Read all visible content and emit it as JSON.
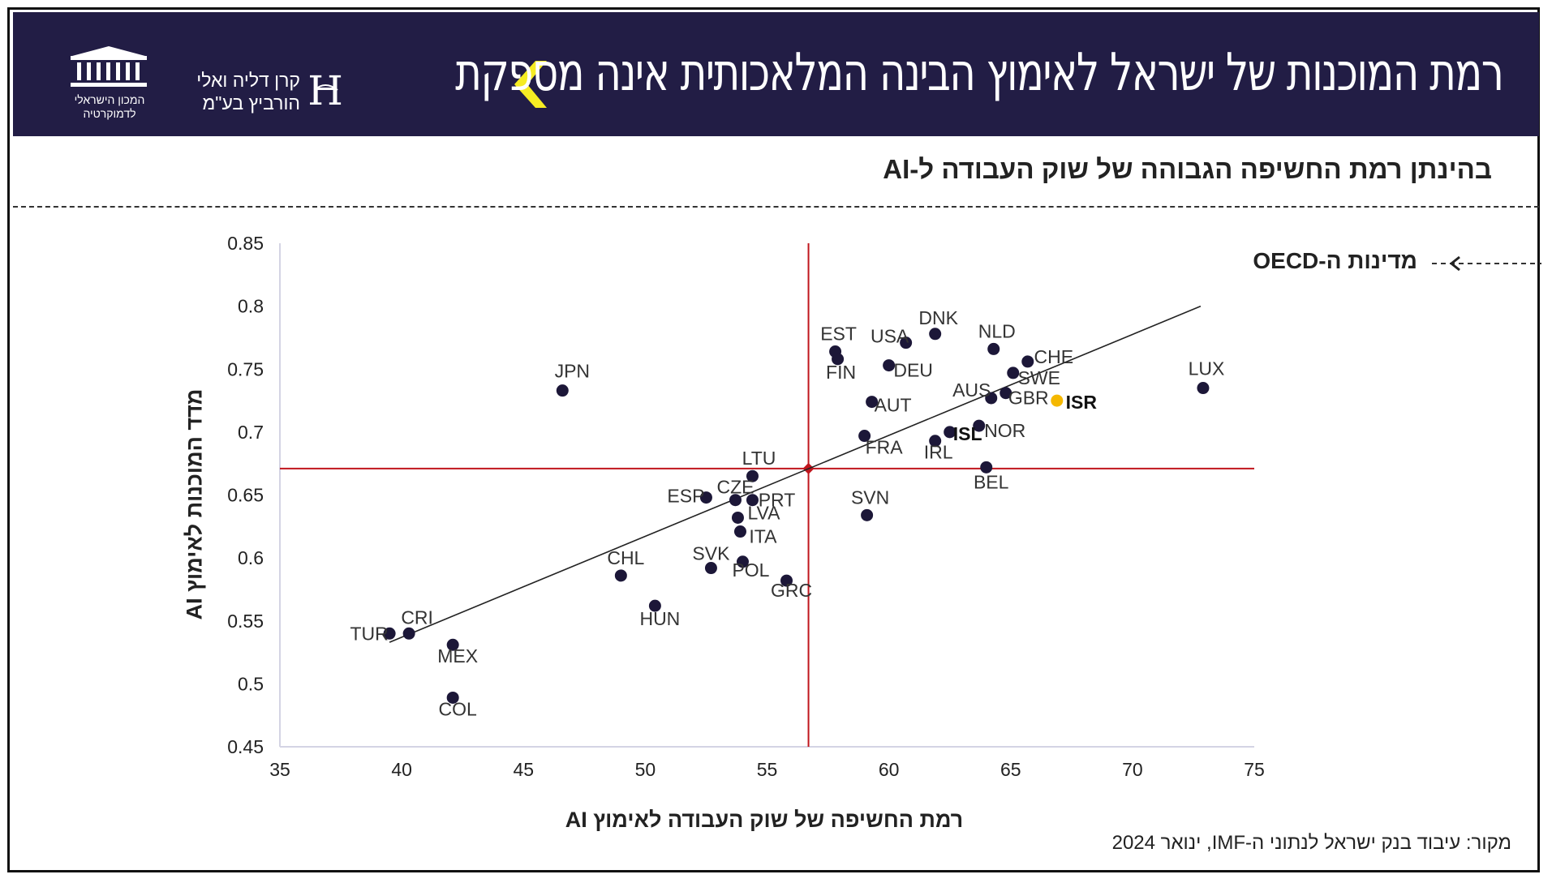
{
  "header": {
    "title": "רמת המוכנות של ישראל לאימוץ הבינה המלאכותית אינה מספקת",
    "foundation_line1": "קרן דליה ואלי",
    "foundation_line2": "הורביץ בע\"מ",
    "idi_line1": "המכון הישראלי",
    "idi_line2": "לדמוקרטיה",
    "background_color": "#221d45",
    "accent_color": "#f6ec23"
  },
  "subtitle": "בהינתן רמת החשיפה הגבוהה של שוק העבודה ל-AI",
  "annotation": "מדינות ה-OECD",
  "source": "מקור: עיבוד בנק ישראל לנתוני ה-IMF, ינואר 2024",
  "chart_data": {
    "type": "scatter",
    "xlabel": "רמת החשיפה של שוק העבודה לאימוץ AI",
    "ylabel": "מדד המוכנות לאימוץ AI",
    "xlim": [
      35,
      75
    ],
    "ylim": [
      0.45,
      0.85
    ],
    "x_ticks": [
      "35",
      "40",
      "45",
      "50",
      "55",
      "60",
      "65",
      "70",
      "75"
    ],
    "y_ticks": [
      "0.45",
      "0.5",
      "0.55",
      "0.6",
      "0.65",
      "0.7",
      "0.75",
      "0.8",
      "0.85"
    ],
    "oecd_average": {
      "x": 56.7,
      "y": 0.671
    },
    "trendline": {
      "from": [
        39.5,
        0.533
      ],
      "to": [
        72.8,
        0.8
      ]
    },
    "point_color": "#1c1738",
    "highlight_color": "#f5b800",
    "reference_line_color": "#c0151d",
    "points": [
      {
        "label": "TUR",
        "x": 39.5,
        "y": 0.54
      },
      {
        "label": "CRI",
        "x": 40.3,
        "y": 0.54
      },
      {
        "label": "MEX",
        "x": 42.1,
        "y": 0.531
      },
      {
        "label": "COL",
        "x": 42.1,
        "y": 0.489
      },
      {
        "label": "JPN",
        "x": 46.6,
        "y": 0.733
      },
      {
        "label": "CHL",
        "x": 49.0,
        "y": 0.586
      },
      {
        "label": "HUN",
        "x": 50.4,
        "y": 0.562
      },
      {
        "label": "SVK",
        "x": 52.7,
        "y": 0.592
      },
      {
        "label": "ESP",
        "x": 52.5,
        "y": 0.648
      },
      {
        "label": "CZE",
        "x": 53.7,
        "y": 0.646
      },
      {
        "label": "LVA",
        "x": 53.8,
        "y": 0.632
      },
      {
        "label": "ITA",
        "x": 53.9,
        "y": 0.621
      },
      {
        "label": "POL",
        "x": 54.0,
        "y": 0.597
      },
      {
        "label": "LTU",
        "x": 54.4,
        "y": 0.665
      },
      {
        "label": "PRT",
        "x": 54.4,
        "y": 0.646
      },
      {
        "label": "GRC",
        "x": 55.8,
        "y": 0.582
      },
      {
        "label": "EST",
        "x": 57.8,
        "y": 0.764
      },
      {
        "label": "FIN",
        "x": 57.9,
        "y": 0.758
      },
      {
        "label": "FRA",
        "x": 59.0,
        "y": 0.697
      },
      {
        "label": "SVN",
        "x": 59.1,
        "y": 0.634
      },
      {
        "label": "AUT",
        "x": 59.3,
        "y": 0.724
      },
      {
        "label": "DEU",
        "x": 60.0,
        "y": 0.753
      },
      {
        "label": "USA",
        "x": 60.7,
        "y": 0.771
      },
      {
        "label": "DNK",
        "x": 61.9,
        "y": 0.778
      },
      {
        "label": "IRL",
        "x": 61.9,
        "y": 0.693
      },
      {
        "label": "ISL",
        "x": 62.5,
        "y": 0.7,
        "bold": true
      },
      {
        "label": "NOR",
        "x": 63.7,
        "y": 0.705
      },
      {
        "label": "BEL",
        "x": 64.0,
        "y": 0.672
      },
      {
        "label": "AUS",
        "x": 64.2,
        "y": 0.727
      },
      {
        "label": "NLD",
        "x": 64.3,
        "y": 0.766
      },
      {
        "label": "GBR",
        "x": 64.8,
        "y": 0.731
      },
      {
        "label": "SWE",
        "x": 65.1,
        "y": 0.747
      },
      {
        "label": "CHE",
        "x": 65.7,
        "y": 0.756
      },
      {
        "label": "ISR",
        "x": 66.9,
        "y": 0.725,
        "highlight": true
      },
      {
        "label": "LUX",
        "x": 72.9,
        "y": 0.735
      }
    ]
  }
}
